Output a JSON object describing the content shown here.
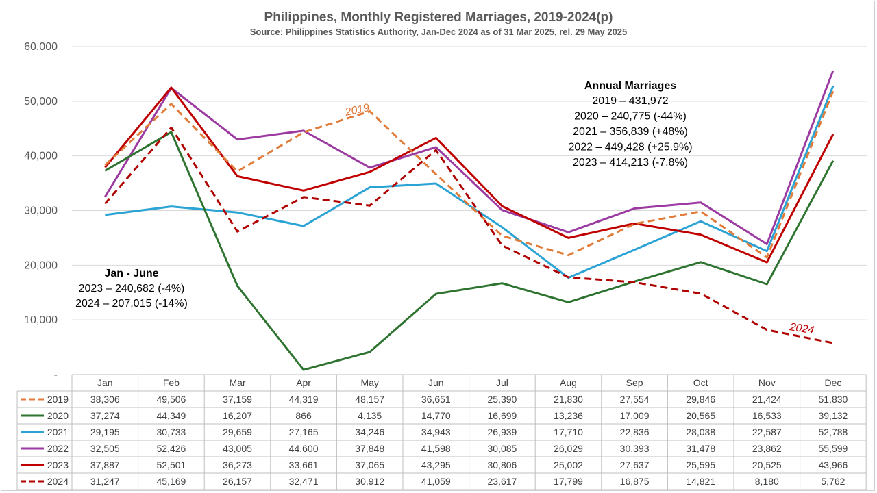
{
  "chart_data": {
    "type": "line",
    "title": "Philippines,  Monthly Registered  Marriages, 2019-2024(p)",
    "subtitle": "Source:  Philippines  Statistics Authority,  Jan-Dec  2024 as of 31 Mar 2025, rel. 29 May 2025",
    "categories": [
      "Jan",
      "Feb",
      "Mar",
      "Apr",
      "May",
      "Jun",
      "Jul",
      "Aug",
      "Sep",
      "Oct",
      "Nov",
      "Dec"
    ],
    "ylim": [
      0,
      60000
    ],
    "yticks": [
      {
        "value": 0,
        "label": "-"
      },
      {
        "value": 10000,
        "label": "10,000"
      },
      {
        "value": 20000,
        "label": "20,000"
      },
      {
        "value": 30000,
        "label": "30,000"
      },
      {
        "value": 40000,
        "label": "40,000"
      },
      {
        "value": 50000,
        "label": "50,000"
      },
      {
        "value": 60000,
        "label": "60,000"
      }
    ],
    "grid": true,
    "legend": "data-table",
    "series": [
      {
        "name": "2019",
        "color": "#E07B39",
        "dash": "dashed",
        "values": [
          38306,
          49506,
          37159,
          44319,
          48157,
          36651,
          25390,
          21830,
          27554,
          29846,
          21424,
          51830
        ],
        "labels": [
          "38,306",
          "49,506",
          "37,159",
          "44,319",
          "48,157",
          "36,651",
          "25,390",
          "21,830",
          "27,554",
          "29,846",
          "21,424",
          "51,830"
        ]
      },
      {
        "name": "2020",
        "color": "#2E7430",
        "dash": "solid",
        "values": [
          37274,
          44349,
          16207,
          866,
          4135,
          14770,
          16699,
          13236,
          17009,
          20565,
          16533,
          39132
        ],
        "labels": [
          "37,274",
          "44,349",
          "16,207",
          "866",
          "4,135",
          "14,770",
          "16,699",
          "13,236",
          "17,009",
          "20,565",
          "16,533",
          "39,132"
        ]
      },
      {
        "name": "2021",
        "color": "#2BA3D4",
        "dash": "solid",
        "values": [
          29195,
          30733,
          29659,
          27165,
          34246,
          34943,
          26939,
          17710,
          22836,
          28038,
          22587,
          52788
        ],
        "labels": [
          "29,195",
          "30,733",
          "29,659",
          "27,165",
          "34,246",
          "34,943",
          "26,939",
          "17,710",
          "22,836",
          "28,038",
          "22,587",
          "52,788"
        ]
      },
      {
        "name": "2022",
        "color": "#9B3AA0",
        "dash": "solid",
        "values": [
          32505,
          52426,
          43005,
          44600,
          37848,
          41598,
          30085,
          26029,
          30393,
          31478,
          23862,
          55599
        ],
        "labels": [
          "32,505",
          "52,426",
          "43,005",
          "44,600",
          "37,848",
          "41,598",
          "30,085",
          "26,029",
          "30,393",
          "31,478",
          "23,862",
          "55,599"
        ]
      },
      {
        "name": "2023",
        "color": "#C00000",
        "dash": "solid",
        "values": [
          37887,
          52501,
          36273,
          33661,
          37065,
          43295,
          30806,
          25002,
          27637,
          25595,
          20525,
          43966
        ],
        "labels": [
          "37,887",
          "52,501",
          "36,273",
          "33,661",
          "37,065",
          "43,295",
          "30,806",
          "25,002",
          "27,637",
          "25,595",
          "20,525",
          "43,966"
        ]
      },
      {
        "name": "2024",
        "color": "#B00000",
        "dash": "dashed",
        "values": [
          31247,
          45169,
          26157,
          32471,
          30912,
          41059,
          23617,
          17799,
          16875,
          14821,
          8180,
          5762
        ],
        "labels": [
          "31,247",
          "45,169",
          "26,157",
          "32,471",
          "30,912",
          "41,059",
          "23,617",
          "17,799",
          "16,875",
          "14,821",
          "8,180",
          "5,762"
        ]
      }
    ],
    "series_labels": [
      {
        "text": "2019",
        "color": "#E07B39"
      },
      {
        "text": "2024",
        "color": "#C00000"
      }
    ],
    "annotations": {
      "annual": {
        "heading": "Annual Marriages",
        "lines": [
          "2019 – 431,972",
          "2020 – 240,775 (-44%)",
          "2021 – 356,839 (+48%)",
          "2022 – 449,428 (+25.9%)",
          "2023 – 414,213 (-7.8%)"
        ]
      },
      "half": {
        "heading": "Jan  - June",
        "lines": [
          "2023 – 240,682 (-4%)",
          "2024 – 207,015 (-14%)"
        ]
      }
    }
  }
}
